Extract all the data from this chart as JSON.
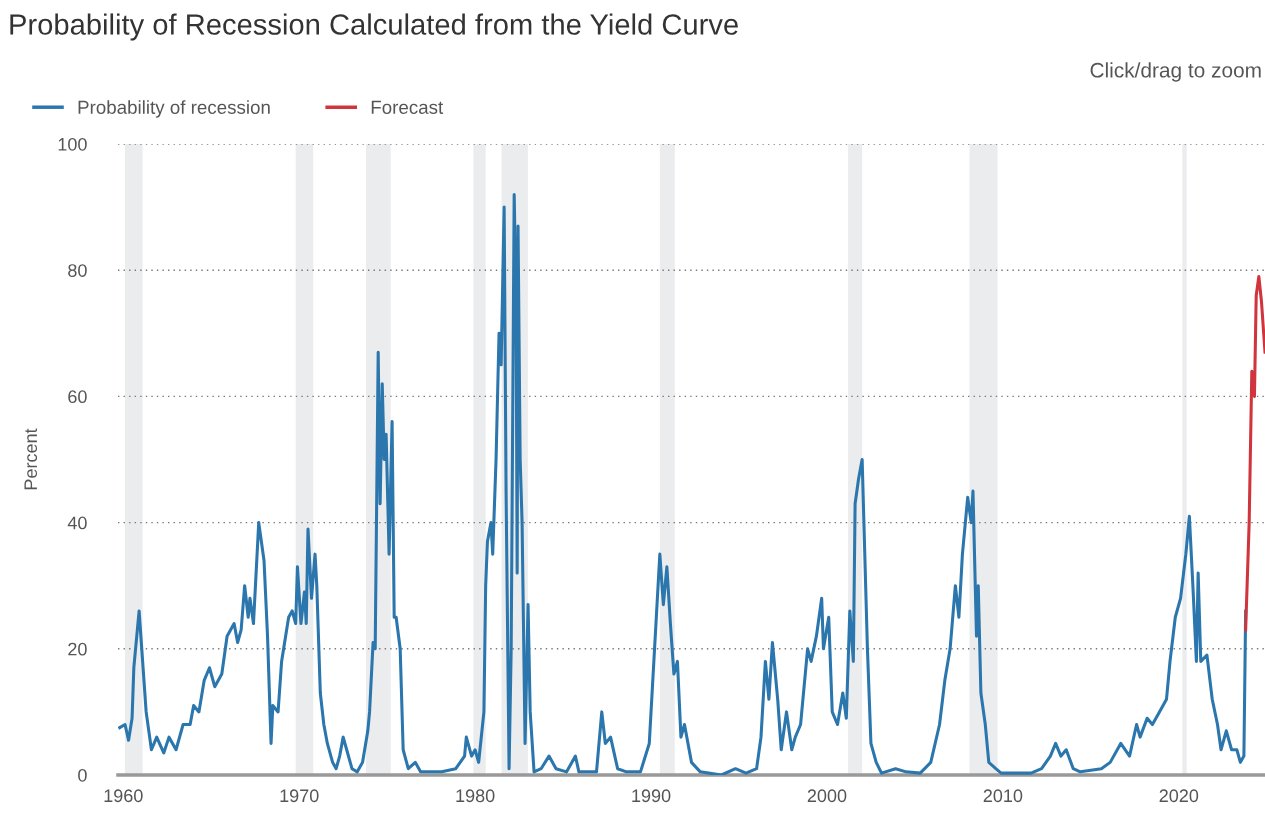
{
  "chart_data": {
    "type": "line",
    "title": "Probability of Recession Calculated from the Yield Curve",
    "ylabel": "Percent",
    "annotations": [
      "Click/drag to zoom"
    ],
    "series": [
      {
        "name": "Probability of recession",
        "color": "#2b76ad",
        "x": [
          1959.8,
          1960.1,
          1960.3,
          1960.5,
          1960.6,
          1960.9,
          1961.1,
          1961.3,
          1961.6,
          1961.9,
          1962.3,
          1962.6,
          1963.0,
          1963.4,
          1963.8,
          1964.0,
          1964.3,
          1964.6,
          1964.9,
          1965.2,
          1965.6,
          1965.9,
          1966.3,
          1966.5,
          1966.7,
          1966.9,
          1967.1,
          1967.2,
          1967.4,
          1967.7,
          1968.0,
          1968.2,
          1968.4,
          1968.5,
          1968.8,
          1969.0,
          1969.4,
          1969.6,
          1969.8,
          1969.9,
          1970.1,
          1970.3,
          1970.4,
          1970.5,
          1970.7,
          1970.9,
          1971.0,
          1971.2,
          1971.4,
          1971.6,
          1971.9,
          1972.1,
          1972.3,
          1972.5,
          1972.7,
          1973.0,
          1973.3,
          1973.6,
          1973.9,
          1974.0,
          1974.2,
          1974.32,
          1974.49,
          1974.6,
          1974.72,
          1974.83,
          1974.94,
          1975.11,
          1975.28,
          1975.4,
          1975.51,
          1975.74,
          1975.91,
          1976.2,
          1976.6,
          1976.9,
          1978.1,
          1978.9,
          1979.4,
          1979.5,
          1979.8,
          1980.0,
          1980.2,
          1980.5,
          1980.6,
          1980.7,
          1980.9,
          1981.0,
          1981.19,
          1981.36,
          1981.48,
          1981.65,
          1981.76,
          1981.93,
          1982.05,
          1982.22,
          1982.33,
          1982.39,
          1982.44,
          1982.56,
          1982.67,
          1982.84,
          1983.01,
          1983.13,
          1983.35,
          1983.75,
          1984.2,
          1984.6,
          1985.2,
          1985.7,
          1985.9,
          1986.9,
          1987.2,
          1987.4,
          1987.7,
          1988.1,
          1988.6,
          1989.4,
          1989.9,
          1990.3,
          1990.5,
          1990.7,
          1990.9,
          1991.1,
          1991.3,
          1991.5,
          1991.7,
          1991.9,
          1992.3,
          1992.8,
          1994.0,
          1994.8,
          1995.4,
          1996.0,
          1996.25,
          1996.5,
          1996.7,
          1996.9,
          1997.2,
          1997.4,
          1997.7,
          1998.0,
          1998.2,
          1998.5,
          1998.9,
          1999.1,
          1999.4,
          1999.7,
          1999.8,
          2000.1,
          2000.3,
          2000.6,
          2000.9,
          2001.1,
          2001.3,
          2001.5,
          2001.6,
          2001.8,
          2002.0,
          2002.3,
          2002.5,
          2002.8,
          2003.1,
          2003.9,
          2004.5,
          2005.3,
          2005.9,
          2006.4,
          2006.7,
          2007.0,
          2007.3,
          2007.5,
          2007.7,
          2008.0,
          2008.2,
          2008.3,
          2008.5,
          2008.6,
          2008.75,
          2009.0,
          2009.2,
          2009.6,
          2009.9,
          2011.6,
          2012.2,
          2012.7,
          2013.0,
          2013.3,
          2013.6,
          2014.0,
          2014.4,
          2015.6,
          2016.1,
          2016.7,
          2017.2,
          2017.6,
          2017.8,
          2018.2,
          2018.5,
          2018.9,
          2019.3,
          2019.5,
          2019.8,
          2020.1,
          2020.4,
          2020.6,
          2020.8,
          2021.0,
          2021.1,
          2021.25,
          2021.6,
          2021.9,
          2022.2,
          2022.4,
          2022.7,
          2023.0,
          2023.3,
          2023.5,
          2023.7,
          2023.8
        ],
        "values": [
          7.5,
          8,
          5.5,
          9,
          17,
          26,
          18,
          10,
          4,
          6,
          3.5,
          6,
          4,
          8,
          8,
          11,
          10,
          15,
          17,
          14,
          16,
          22,
          24,
          21,
          23,
          30,
          25,
          28,
          24,
          40,
          34,
          22,
          5,
          11,
          10,
          18,
          25,
          26,
          24,
          33,
          24,
          29,
          24,
          39,
          28,
          35,
          30,
          13,
          8,
          5,
          2,
          1,
          3,
          6,
          4,
          1,
          0.5,
          2,
          7,
          10,
          21,
          20,
          67,
          43,
          62,
          50,
          54,
          35,
          56,
          25,
          25,
          20,
          4,
          1,
          2,
          0.5,
          0.5,
          1,
          3,
          6,
          3,
          4,
          2,
          10,
          30,
          37,
          40,
          35,
          50,
          70,
          65,
          90,
          45,
          1,
          20,
          92,
          75,
          32,
          87,
          50,
          40,
          5,
          27,
          10,
          0.5,
          1,
          3,
          1,
          0.5,
          3,
          0.5,
          0.5,
          10,
          5,
          6,
          1,
          0.5,
          0.5,
          5,
          25,
          35,
          27,
          33,
          24,
          16,
          18,
          6,
          8,
          2,
          0.5,
          0,
          1,
          0.3,
          1,
          6,
          18,
          12,
          21,
          12,
          4,
          10,
          4,
          6,
          8,
          20,
          18,
          22,
          28,
          20,
          25,
          10,
          8,
          13,
          9,
          26,
          18,
          43,
          47,
          50,
          20,
          5,
          2,
          0.3,
          1,
          0.5,
          0.3,
          2,
          8,
          15,
          20,
          30,
          25,
          35,
          44,
          40,
          45,
          22,
          30,
          13,
          8,
          2,
          1,
          0.3,
          0.3,
          1,
          3,
          5,
          3,
          4,
          1,
          0.5,
          1,
          2,
          5,
          3,
          8,
          6,
          9,
          8,
          10,
          12,
          18,
          25,
          28,
          35,
          41,
          30,
          18,
          32,
          18,
          19,
          12,
          8,
          4,
          7,
          4,
          4,
          2,
          3,
          26
        ]
      },
      {
        "name": "Forecast",
        "color": "#d0343c",
        "x": [
          2023.8,
          2024.0,
          2024.15,
          2024.3,
          2024.4,
          2024.55,
          2024.7,
          2024.9
        ],
        "values": [
          23,
          40,
          64,
          60,
          76,
          79,
          75,
          67
        ]
      }
    ],
    "bands": [
      {
        "axis": "x",
        "from": 1960.1,
        "to": 1961.1,
        "color": "#ebecee"
      },
      {
        "axis": "x",
        "from": 1969.8,
        "to": 1970.8,
        "color": "#ebecee"
      },
      {
        "axis": "x",
        "from": 1973.8,
        "to": 1975.2,
        "color": "#ebecee"
      },
      {
        "axis": "x",
        "from": 1979.9,
        "to": 1980.6,
        "color": "#ebecee"
      },
      {
        "axis": "x",
        "from": 1981.5,
        "to": 1983.0,
        "color": "#ebecee"
      },
      {
        "axis": "x",
        "from": 1990.5,
        "to": 1991.35,
        "color": "#ebecee"
      },
      {
        "axis": "x",
        "from": 2001.2,
        "to": 2002.0,
        "color": "#ebecee"
      },
      {
        "axis": "x",
        "from": 2008.1,
        "to": 2009.7,
        "color": "#ebecee"
      },
      {
        "axis": "x",
        "from": 2020.2,
        "to": 2020.45,
        "color": "#ebecee"
      }
    ],
    "xlim": [
      1959.7,
      2024.9
    ],
    "xticks": [
      1960,
      1970,
      1980,
      1990,
      2000,
      2010,
      2020
    ],
    "ylim": [
      0,
      100
    ],
    "yticks": [
      0,
      20,
      40,
      60,
      80,
      100
    ],
    "grid": "y",
    "legend": "top left",
    "marker": "none",
    "line_style": "solid"
  }
}
